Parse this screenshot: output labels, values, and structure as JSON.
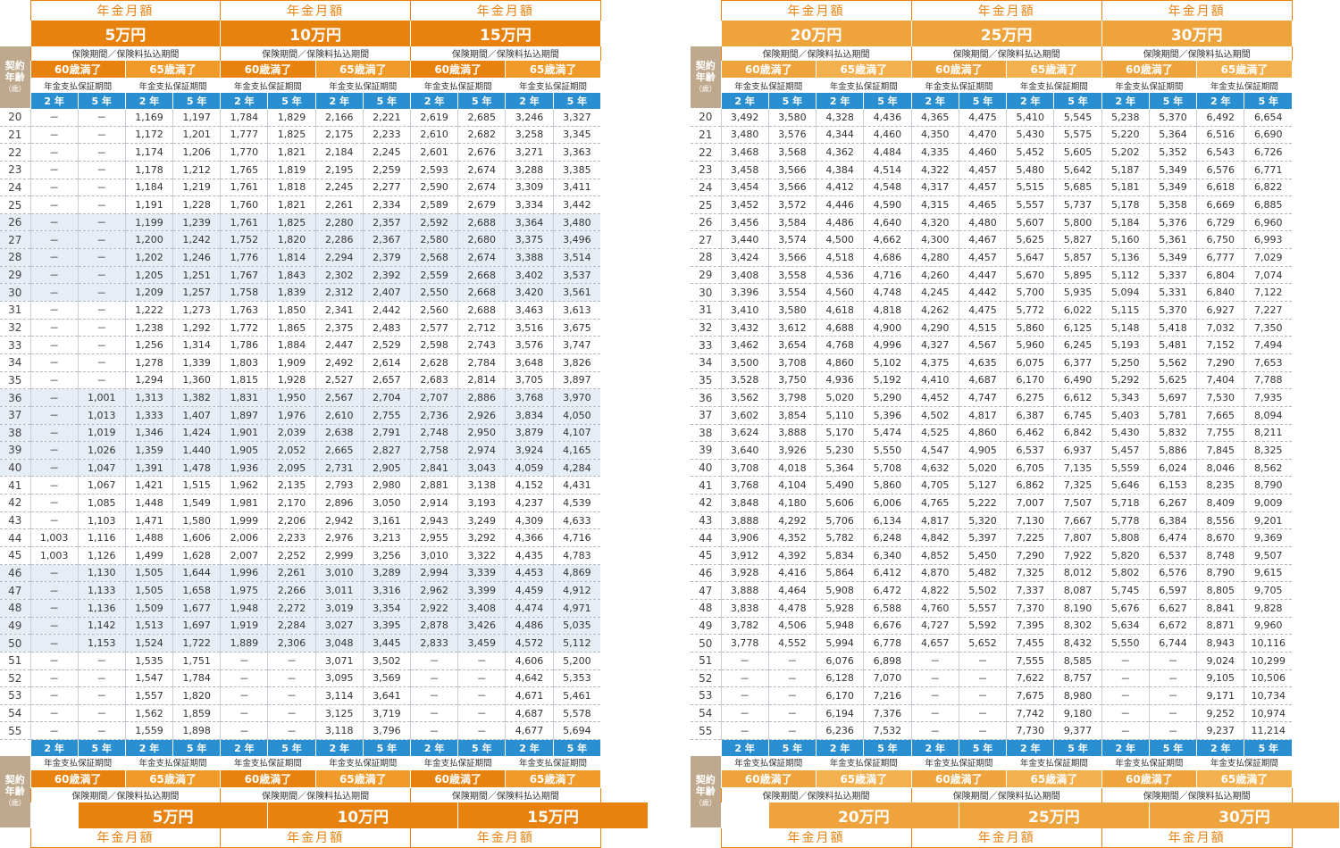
{
  "labels": {
    "title": "年金月額",
    "period": "保険期間／保険料払込期間",
    "guarantee": "年金支払保証期間",
    "mature60": "60歳満了",
    "mature65": "65歳満了",
    "yr2": "2 年",
    "yr5": "5 年",
    "age_head_1": "契約",
    "age_head_2": "年齢",
    "age_head_3": "（歳）"
  },
  "panels": [
    {
      "amounts": [
        "5万円",
        "10万円",
        "15万円"
      ]
    },
    {
      "amounts": [
        "20万円",
        "25万円",
        "30万円"
      ]
    }
  ],
  "ages": [
    "20",
    "21",
    "22",
    "23",
    "24",
    "25",
    "26",
    "27",
    "28",
    "29",
    "30",
    "31",
    "32",
    "33",
    "34",
    "35",
    "36",
    "37",
    "38",
    "39",
    "40",
    "41",
    "42",
    "43",
    "44",
    "45",
    "46",
    "47",
    "48",
    "49",
    "50",
    "51",
    "52",
    "53",
    "54",
    "55"
  ],
  "rows_left": [
    [
      "－",
      "－",
      "1,169",
      "1,197",
      "1,784",
      "1,829",
      "2,166",
      "2,221",
      "2,619",
      "2,685",
      "3,246",
      "3,327"
    ],
    [
      "－",
      "－",
      "1,172",
      "1,201",
      "1,777",
      "1,825",
      "2,175",
      "2,233",
      "2,610",
      "2,682",
      "3,258",
      "3,345"
    ],
    [
      "－",
      "－",
      "1,174",
      "1,206",
      "1,770",
      "1,821",
      "2,184",
      "2,245",
      "2,601",
      "2,676",
      "3,271",
      "3,363"
    ],
    [
      "－",
      "－",
      "1,178",
      "1,212",
      "1,765",
      "1,819",
      "2,195",
      "2,259",
      "2,593",
      "2,674",
      "3,288",
      "3,385"
    ],
    [
      "－",
      "－",
      "1,184",
      "1,219",
      "1,761",
      "1,818",
      "2,245",
      "2,277",
      "2,590",
      "2,674",
      "3,309",
      "3,411"
    ],
    [
      "－",
      "－",
      "1,191",
      "1,228",
      "1,760",
      "1,821",
      "2,261",
      "2,334",
      "2,589",
      "2,679",
      "3,334",
      "3,442"
    ],
    [
      "－",
      "－",
      "1,199",
      "1,239",
      "1,761",
      "1,825",
      "2,280",
      "2,357",
      "2,592",
      "2,688",
      "3,364",
      "3,480"
    ],
    [
      "－",
      "－",
      "1,200",
      "1,242",
      "1,752",
      "1,820",
      "2,286",
      "2,367",
      "2,580",
      "2,680",
      "3,375",
      "3,496"
    ],
    [
      "－",
      "－",
      "1,202",
      "1,246",
      "1,776",
      "1,814",
      "2,294",
      "2,379",
      "2,568",
      "2,674",
      "3,388",
      "3,514"
    ],
    [
      "－",
      "－",
      "1,205",
      "1,251",
      "1,767",
      "1,843",
      "2,302",
      "2,392",
      "2,559",
      "2,668",
      "3,402",
      "3,537"
    ],
    [
      "－",
      "－",
      "1,209",
      "1,257",
      "1,758",
      "1,839",
      "2,312",
      "2,407",
      "2,550",
      "2,668",
      "3,420",
      "3,561"
    ],
    [
      "－",
      "－",
      "1,222",
      "1,273",
      "1,763",
      "1,850",
      "2,341",
      "2,442",
      "2,560",
      "2,688",
      "3,463",
      "3,613"
    ],
    [
      "－",
      "－",
      "1,238",
      "1,292",
      "1,772",
      "1,865",
      "2,375",
      "2,483",
      "2,577",
      "2,712",
      "3,516",
      "3,675"
    ],
    [
      "－",
      "－",
      "1,256",
      "1,314",
      "1,786",
      "1,884",
      "2,447",
      "2,529",
      "2,598",
      "2,743",
      "3,576",
      "3,747"
    ],
    [
      "－",
      "－",
      "1,278",
      "1,339",
      "1,803",
      "1,909",
      "2,492",
      "2,614",
      "2,628",
      "2,784",
      "3,648",
      "3,826"
    ],
    [
      "－",
      "－",
      "1,294",
      "1,360",
      "1,815",
      "1,928",
      "2,527",
      "2,657",
      "2,683",
      "2,814",
      "3,705",
      "3,897"
    ],
    [
      "－",
      "1,001",
      "1,313",
      "1,382",
      "1,831",
      "1,950",
      "2,567",
      "2,704",
      "2,707",
      "2,886",
      "3,768",
      "3,970"
    ],
    [
      "－",
      "1,013",
      "1,333",
      "1,407",
      "1,897",
      "1,976",
      "2,610",
      "2,755",
      "2,736",
      "2,926",
      "3,834",
      "4,050"
    ],
    [
      "－",
      "1,019",
      "1,346",
      "1,424",
      "1,901",
      "2,039",
      "2,638",
      "2,791",
      "2,748",
      "2,950",
      "3,879",
      "4,107"
    ],
    [
      "－",
      "1,026",
      "1,359",
      "1,440",
      "1,905",
      "2,052",
      "2,665",
      "2,827",
      "2,758",
      "2,974",
      "3,924",
      "4,165"
    ],
    [
      "－",
      "1,047",
      "1,391",
      "1,478",
      "1,936",
      "2,095",
      "2,731",
      "2,905",
      "2,841",
      "3,043",
      "4,059",
      "4,284"
    ],
    [
      "－",
      "1,067",
      "1,421",
      "1,515",
      "1,962",
      "2,135",
      "2,793",
      "2,980",
      "2,881",
      "3,138",
      "4,152",
      "4,431"
    ],
    [
      "－",
      "1,085",
      "1,448",
      "1,549",
      "1,981",
      "2,170",
      "2,896",
      "3,050",
      "2,914",
      "3,193",
      "4,237",
      "4,539"
    ],
    [
      "－",
      "1,103",
      "1,471",
      "1,580",
      "1,999",
      "2,206",
      "2,942",
      "3,161",
      "2,943",
      "3,249",
      "4,309",
      "4,633"
    ],
    [
      "1,003",
      "1,116",
      "1,488",
      "1,606",
      "2,006",
      "2,233",
      "2,976",
      "3,213",
      "2,955",
      "3,292",
      "4,366",
      "4,716"
    ],
    [
      "1,003",
      "1,126",
      "1,499",
      "1,628",
      "2,007",
      "2,252",
      "2,999",
      "3,256",
      "3,010",
      "3,322",
      "4,435",
      "4,783"
    ],
    [
      "－",
      "1,130",
      "1,505",
      "1,644",
      "1,996",
      "2,261",
      "3,010",
      "3,289",
      "2,994",
      "3,339",
      "4,453",
      "4,869"
    ],
    [
      "－",
      "1,133",
      "1,505",
      "1,658",
      "1,975",
      "2,266",
      "3,011",
      "3,316",
      "2,962",
      "3,399",
      "4,459",
      "4,912"
    ],
    [
      "－",
      "1,136",
      "1,509",
      "1,677",
      "1,948",
      "2,272",
      "3,019",
      "3,354",
      "2,922",
      "3,408",
      "4,474",
      "4,971"
    ],
    [
      "－",
      "1,142",
      "1,513",
      "1,697",
      "1,919",
      "2,284",
      "3,027",
      "3,395",
      "2,878",
      "3,426",
      "4,486",
      "5,035"
    ],
    [
      "－",
      "1,153",
      "1,524",
      "1,722",
      "1,889",
      "2,306",
      "3,048",
      "3,445",
      "2,833",
      "3,459",
      "4,572",
      "5,112"
    ],
    [
      "－",
      "－",
      "1,535",
      "1,751",
      "－",
      "－",
      "3,071",
      "3,502",
      "－",
      "－",
      "4,606",
      "5,200"
    ],
    [
      "－",
      "－",
      "1,547",
      "1,784",
      "－",
      "－",
      "3,095",
      "3,569",
      "－",
      "－",
      "4,642",
      "5,353"
    ],
    [
      "－",
      "－",
      "1,557",
      "1,820",
      "－",
      "－",
      "3,114",
      "3,641",
      "－",
      "－",
      "4,671",
      "5,461"
    ],
    [
      "－",
      "－",
      "1,562",
      "1,859",
      "－",
      "－",
      "3,125",
      "3,719",
      "－",
      "－",
      "4,687",
      "5,578"
    ],
    [
      "－",
      "－",
      "1,559",
      "1,898",
      "－",
      "－",
      "3,118",
      "3,796",
      "－",
      "－",
      "4,677",
      "5,694"
    ]
  ],
  "rows_right": [
    [
      "3,492",
      "3,580",
      "4,328",
      "4,436",
      "4,365",
      "4,475",
      "5,410",
      "5,545",
      "5,238",
      "5,370",
      "6,492",
      "6,654"
    ],
    [
      "3,480",
      "3,576",
      "4,344",
      "4,460",
      "4,350",
      "4,470",
      "5,430",
      "5,575",
      "5,220",
      "5,364",
      "6,516",
      "6,690"
    ],
    [
      "3,468",
      "3,568",
      "4,362",
      "4,484",
      "4,335",
      "4,460",
      "5,452",
      "5,605",
      "5,202",
      "5,352",
      "6,543",
      "6,726"
    ],
    [
      "3,458",
      "3,566",
      "4,384",
      "4,514",
      "4,322",
      "4,457",
      "5,480",
      "5,642",
      "5,187",
      "5,349",
      "6,576",
      "6,771"
    ],
    [
      "3,454",
      "3,566",
      "4,412",
      "4,548",
      "4,317",
      "4,457",
      "5,515",
      "5,685",
      "5,181",
      "5,349",
      "6,618",
      "6,822"
    ],
    [
      "3,452",
      "3,572",
      "4,446",
      "4,590",
      "4,315",
      "4,465",
      "5,557",
      "5,737",
      "5,178",
      "5,358",
      "6,669",
      "6,885"
    ],
    [
      "3,456",
      "3,584",
      "4,486",
      "4,640",
      "4,320",
      "4,480",
      "5,607",
      "5,800",
      "5,184",
      "5,376",
      "6,729",
      "6,960"
    ],
    [
      "3,440",
      "3,574",
      "4,500",
      "4,662",
      "4,300",
      "4,467",
      "5,625",
      "5,827",
      "5,160",
      "5,361",
      "6,750",
      "6,993"
    ],
    [
      "3,424",
      "3,566",
      "4,518",
      "4,686",
      "4,280",
      "4,457",
      "5,647",
      "5,857",
      "5,136",
      "5,349",
      "6,777",
      "7,029"
    ],
    [
      "3,408",
      "3,558",
      "4,536",
      "4,716",
      "4,260",
      "4,447",
      "5,670",
      "5,895",
      "5,112",
      "5,337",
      "6,804",
      "7,074"
    ],
    [
      "3,396",
      "3,554",
      "4,560",
      "4,748",
      "4,245",
      "4,442",
      "5,700",
      "5,935",
      "5,094",
      "5,331",
      "6,840",
      "7,122"
    ],
    [
      "3,410",
      "3,580",
      "4,618",
      "4,818",
      "4,262",
      "4,475",
      "5,772",
      "6,022",
      "5,115",
      "5,370",
      "6,927",
      "7,227"
    ],
    [
      "3,432",
      "3,612",
      "4,688",
      "4,900",
      "4,290",
      "4,515",
      "5,860",
      "6,125",
      "5,148",
      "5,418",
      "7,032",
      "7,350"
    ],
    [
      "3,462",
      "3,654",
      "4,768",
      "4,996",
      "4,327",
      "4,567",
      "5,960",
      "6,245",
      "5,193",
      "5,481",
      "7,152",
      "7,494"
    ],
    [
      "3,500",
      "3,708",
      "4,860",
      "5,102",
      "4,375",
      "4,635",
      "6,075",
      "6,377",
      "5,250",
      "5,562",
      "7,290",
      "7,653"
    ],
    [
      "3,528",
      "3,750",
      "4,936",
      "5,192",
      "4,410",
      "4,687",
      "6,170",
      "6,490",
      "5,292",
      "5,625",
      "7,404",
      "7,788"
    ],
    [
      "3,562",
      "3,798",
      "5,020",
      "5,290",
      "4,452",
      "4,747",
      "6,275",
      "6,612",
      "5,343",
      "5,697",
      "7,530",
      "7,935"
    ],
    [
      "3,602",
      "3,854",
      "5,110",
      "5,396",
      "4,502",
      "4,817",
      "6,387",
      "6,745",
      "5,403",
      "5,781",
      "7,665",
      "8,094"
    ],
    [
      "3,624",
      "3,888",
      "5,170",
      "5,474",
      "4,525",
      "4,860",
      "6,462",
      "6,842",
      "5,430",
      "5,832",
      "7,755",
      "8,211"
    ],
    [
      "3,640",
      "3,926",
      "5,230",
      "5,550",
      "4,547",
      "4,905",
      "6,537",
      "6,937",
      "5,457",
      "5,886",
      "7,845",
      "8,325"
    ],
    [
      "3,708",
      "4,018",
      "5,364",
      "5,708",
      "4,632",
      "5,020",
      "6,705",
      "7,135",
      "5,559",
      "6,024",
      "8,046",
      "8,562"
    ],
    [
      "3,768",
      "4,104",
      "5,490",
      "5,860",
      "4,705",
      "5,127",
      "6,862",
      "7,325",
      "5,646",
      "6,153",
      "8,235",
      "8,790"
    ],
    [
      "3,848",
      "4,180",
      "5,606",
      "6,006",
      "4,765",
      "5,222",
      "7,007",
      "7,507",
      "5,718",
      "6,267",
      "8,409",
      "9,009"
    ],
    [
      "3,888",
      "4,292",
      "5,706",
      "6,134",
      "4,817",
      "5,320",
      "7,130",
      "7,667",
      "5,778",
      "6,384",
      "8,556",
      "9,201"
    ],
    [
      "3,906",
      "4,352",
      "5,782",
      "6,248",
      "4,842",
      "5,397",
      "7,225",
      "7,807",
      "5,808",
      "6,474",
      "8,670",
      "9,369"
    ],
    [
      "3,912",
      "4,392",
      "5,834",
      "6,340",
      "4,852",
      "5,450",
      "7,290",
      "7,922",
      "5,820",
      "6,537",
      "8,748",
      "9,507"
    ],
    [
      "3,928",
      "4,416",
      "5,864",
      "6,412",
      "4,870",
      "5,482",
      "7,325",
      "8,012",
      "5,802",
      "6,576",
      "8,790",
      "9,615"
    ],
    [
      "3,888",
      "4,464",
      "5,908",
      "6,472",
      "4,822",
      "5,502",
      "7,337",
      "8,087",
      "5,745",
      "6,597",
      "8,805",
      "9,705"
    ],
    [
      "3,838",
      "4,478",
      "5,928",
      "6,588",
      "4,760",
      "5,557",
      "7,370",
      "8,190",
      "5,676",
      "6,627",
      "8,841",
      "9,828"
    ],
    [
      "3,782",
      "4,506",
      "5,948",
      "6,676",
      "4,727",
      "5,592",
      "7,395",
      "8,302",
      "5,634",
      "6,672",
      "8,871",
      "9,960"
    ],
    [
      "3,778",
      "4,552",
      "5,994",
      "6,778",
      "4,657",
      "5,652",
      "7,455",
      "8,432",
      "5,550",
      "6,744",
      "8,943",
      "10,116"
    ],
    [
      "－",
      "－",
      "6,076",
      "6,898",
      "－",
      "－",
      "7,555",
      "8,585",
      "－",
      "－",
      "9,024",
      "10,299"
    ],
    [
      "－",
      "－",
      "6,128",
      "7,070",
      "－",
      "－",
      "7,622",
      "8,757",
      "－",
      "－",
      "9,105",
      "10,506"
    ],
    [
      "－",
      "－",
      "6,170",
      "7,216",
      "－",
      "－",
      "7,675",
      "8,980",
      "－",
      "－",
      "9,171",
      "10,734"
    ],
    [
      "－",
      "－",
      "6,194",
      "7,376",
      "－",
      "－",
      "7,742",
      "9,180",
      "－",
      "－",
      "9,252",
      "10,974"
    ],
    [
      "－",
      "－",
      "6,236",
      "7,532",
      "－",
      "－",
      "7,730",
      "9,377",
      "－",
      "－",
      "9,237",
      "11,214"
    ]
  ],
  "colors": {
    "orange": "#e8820e",
    "orange_light": "#eea33c",
    "blue": "#2a8fd0",
    "shade": "#e6edf4",
    "age_head": "#bfa98e"
  }
}
